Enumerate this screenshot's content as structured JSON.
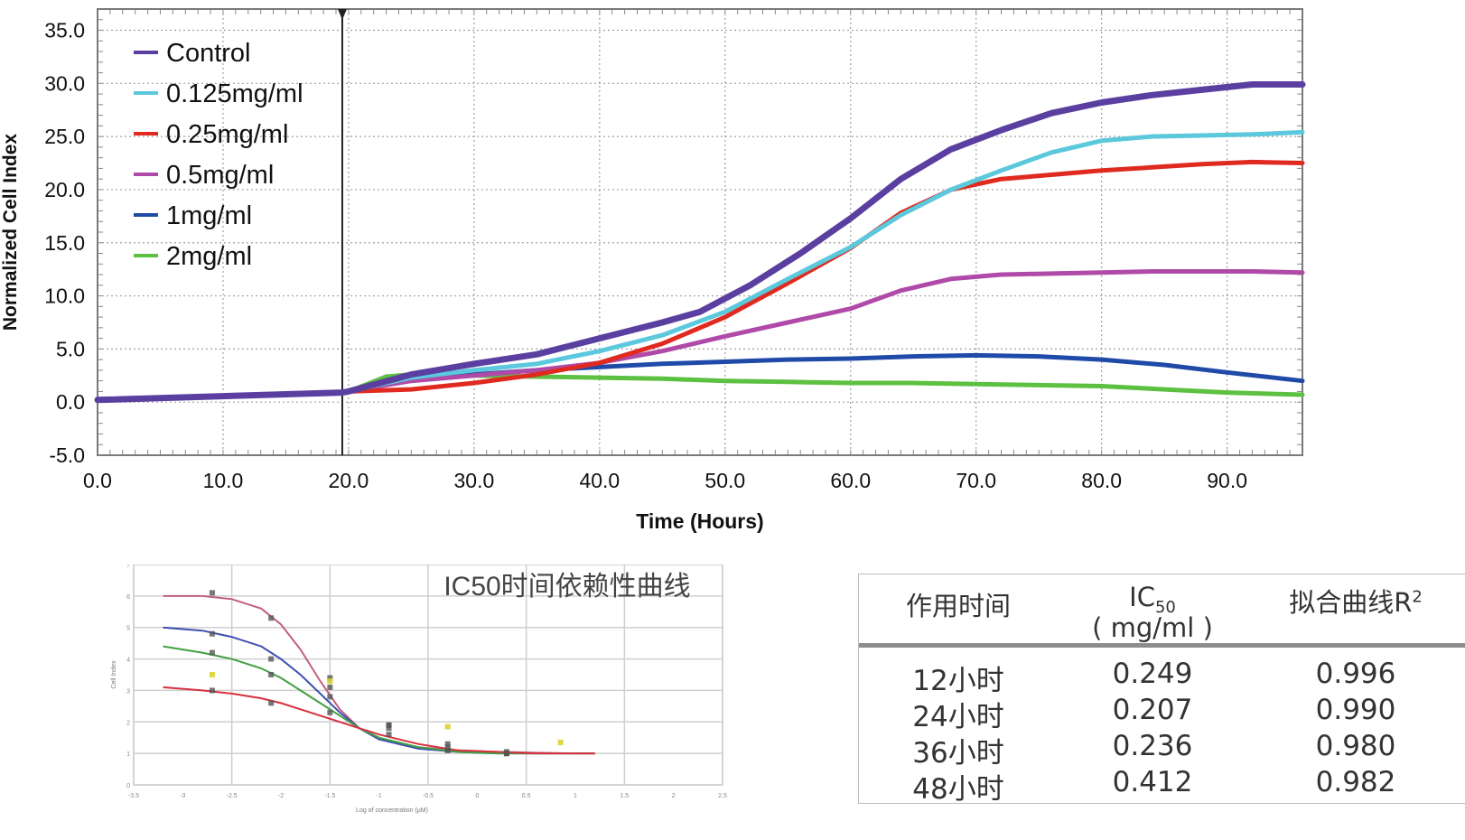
{
  "chart_data": [
    {
      "type": "line",
      "title": "",
      "xlabel": "Time (Hours)",
      "ylabel": "Normalized Cell Index",
      "xlim": [
        0,
        96
      ],
      "ylim": [
        -5,
        37
      ],
      "xticks": [
        0,
        10,
        20,
        30,
        40,
        50,
        60,
        70,
        80,
        90
      ],
      "xtick_labels": [
        "0.0",
        "10.0",
        "20.0",
        "30.0",
        "40.0",
        "50.0",
        "60.0",
        "70.0",
        "80.0",
        "90.0"
      ],
      "yticks": [
        -5,
        0,
        5,
        10,
        15,
        20,
        25,
        30,
        35
      ],
      "ytick_labels": [
        "-5.0",
        "0.0",
        "5.0",
        "10.0",
        "15.0",
        "20.0",
        "25.0",
        "30.0",
        "35.0"
      ],
      "grid": true,
      "legend_position": "top-left",
      "marker_line_x": 19.5,
      "series": [
        {
          "name": "Control",
          "color": "#5b3fa0",
          "x": [
            0,
            19.5,
            20,
            25,
            30,
            35,
            40,
            45,
            48,
            52,
            56,
            60,
            64,
            68,
            72,
            76,
            80,
            84,
            88,
            92,
            96
          ],
          "y": [
            0.2,
            0.9,
            1.0,
            2.6,
            3.6,
            4.5,
            6.0,
            7.5,
            8.5,
            11.0,
            14.0,
            17.3,
            21.0,
            23.8,
            25.6,
            27.2,
            28.2,
            28.9,
            29.4,
            29.9,
            29.9
          ]
        },
        {
          "name": "0.125mg/ml",
          "color": "#5bc8dc",
          "x": [
            20,
            25,
            30,
            35,
            40,
            45,
            50,
            55,
            60,
            64,
            68,
            72,
            76,
            80,
            84,
            88,
            92,
            96
          ],
          "y": [
            1.0,
            2.3,
            3.0,
            3.6,
            4.8,
            6.3,
            8.5,
            11.6,
            14.6,
            17.6,
            20.0,
            21.8,
            23.5,
            24.6,
            25.0,
            25.1,
            25.2,
            25.4
          ]
        },
        {
          "name": "0.25mg/ml",
          "color": "#e02a20",
          "x": [
            20,
            25,
            30,
            35,
            40,
            45,
            50,
            55,
            60,
            64,
            68,
            72,
            76,
            80,
            84,
            88,
            92,
            96
          ],
          "y": [
            1.0,
            1.2,
            1.8,
            2.6,
            3.7,
            5.5,
            8.0,
            11.2,
            14.5,
            17.8,
            20.0,
            21.0,
            21.4,
            21.8,
            22.1,
            22.4,
            22.6,
            22.5
          ]
        },
        {
          "name": "0.5mg/ml",
          "color": "#b04aa8",
          "x": [
            20,
            25,
            30,
            35,
            40,
            45,
            50,
            55,
            60,
            64,
            68,
            72,
            76,
            80,
            84,
            88,
            92,
            96
          ],
          "y": [
            1.0,
            2.0,
            2.5,
            3.0,
            3.7,
            4.8,
            6.2,
            7.5,
            8.8,
            10.5,
            11.6,
            12.0,
            12.1,
            12.2,
            12.3,
            12.3,
            12.3,
            12.2
          ]
        },
        {
          "name": "1mg/ml",
          "color": "#1f4aa8",
          "x": [
            20,
            25,
            30,
            35,
            40,
            45,
            50,
            55,
            60,
            65,
            70,
            75,
            80,
            85,
            90,
            96
          ],
          "y": [
            1.0,
            2.2,
            2.6,
            3.0,
            3.3,
            3.6,
            3.8,
            4.0,
            4.1,
            4.3,
            4.4,
            4.3,
            4.0,
            3.5,
            2.8,
            2.0
          ]
        },
        {
          "name": "2mg/ml",
          "color": "#5cc040",
          "x": [
            20,
            23,
            25,
            30,
            35,
            40,
            45,
            50,
            55,
            60,
            65,
            70,
            75,
            80,
            85,
            90,
            96
          ],
          "y": [
            1.0,
            2.4,
            2.6,
            2.5,
            2.4,
            2.3,
            2.2,
            2.0,
            1.9,
            1.8,
            1.8,
            1.7,
            1.6,
            1.5,
            1.2,
            0.9,
            0.7
          ]
        }
      ]
    },
    {
      "type": "line",
      "title": "IC50时间依赖性曲线",
      "xlabel": "Log of concentration (µM)",
      "ylabel": "Cell Index",
      "xlim": [
        -3.5,
        2.5
      ],
      "ylim": [
        0,
        7
      ],
      "xticks": [
        -3.5,
        -3,
        -2.5,
        -2,
        -1.5,
        -1,
        -0.5,
        0,
        0.5,
        1,
        1.5,
        2,
        2.5
      ],
      "xtick_labels": [
        "-3.5",
        "-3",
        "-2.5",
        "-2",
        "-1.5",
        "-1",
        "-0.5",
        "0",
        "0.5",
        "1",
        "1.5",
        "2",
        "2.5"
      ],
      "yticks": [
        0,
        1,
        2,
        3,
        4,
        5,
        6,
        7
      ],
      "ytick_labels": [
        "0",
        "1",
        "2",
        "3",
        "4",
        "5",
        "6",
        "7"
      ],
      "grid": true,
      "series": [
        {
          "color": "#c06080",
          "fit_x": [
            -3.2,
            -2.8,
            -2.5,
            -2.2,
            -2.0,
            -1.8,
            -1.6,
            -1.4,
            -1.2,
            -1.0,
            -0.6,
            -0.2,
            0.2,
            0.6,
            1.0,
            1.2
          ],
          "fit_y": [
            6.0,
            6.0,
            5.9,
            5.6,
            5.1,
            4.3,
            3.3,
            2.4,
            1.8,
            1.45,
            1.2,
            1.1,
            1.05,
            1.02,
            1.0,
            1.0
          ],
          "point_x": [
            -2.7,
            -2.1,
            -1.5,
            -0.9,
            -0.3,
            0.3
          ],
          "point_y": [
            6.1,
            5.3,
            3.4,
            1.6,
            1.1,
            1.0
          ]
        },
        {
          "color": "#3c50b0",
          "fit_x": [
            -3.2,
            -2.8,
            -2.5,
            -2.2,
            -2.0,
            -1.8,
            -1.6,
            -1.4,
            -1.2,
            -1.0,
            -0.6,
            -0.2,
            0.2,
            0.6,
            1.0,
            1.2
          ],
          "fit_y": [
            5.0,
            4.9,
            4.7,
            4.4,
            4.0,
            3.5,
            2.9,
            2.3,
            1.8,
            1.45,
            1.15,
            1.05,
            1.0,
            1.0,
            1.0,
            1.0
          ],
          "point_x": [
            -2.7,
            -2.1,
            -1.5,
            -0.9,
            -0.3,
            0.3
          ],
          "point_y": [
            4.8,
            4.0,
            3.1,
            1.9,
            1.1,
            1.0
          ]
        },
        {
          "color": "#40a040",
          "fit_x": [
            -3.2,
            -2.8,
            -2.5,
            -2.2,
            -2.0,
            -1.8,
            -1.6,
            -1.4,
            -1.2,
            -1.0,
            -0.6,
            -0.2,
            0.2,
            0.6,
            1.0,
            1.2
          ],
          "fit_y": [
            4.4,
            4.2,
            4.0,
            3.7,
            3.4,
            3.0,
            2.6,
            2.2,
            1.8,
            1.5,
            1.2,
            1.05,
            1.0,
            1.0,
            1.0,
            1.0
          ],
          "point_x": [
            -2.7,
            -2.1,
            -1.5,
            -0.9,
            -0.3,
            0.3
          ],
          "point_y": [
            4.2,
            3.5,
            2.8,
            1.9,
            1.2,
            1.0
          ]
        },
        {
          "color": "#d83040",
          "fit_x": [
            -3.2,
            -2.8,
            -2.5,
            -2.2,
            -2.0,
            -1.8,
            -1.6,
            -1.4,
            -1.2,
            -1.0,
            -0.6,
            -0.2,
            0.2,
            0.6,
            1.0,
            1.2
          ],
          "fit_y": [
            3.1,
            3.0,
            2.9,
            2.75,
            2.6,
            2.4,
            2.2,
            2.0,
            1.8,
            1.6,
            1.3,
            1.1,
            1.05,
            1.0,
            1.0,
            1.0
          ],
          "point_x": [
            -2.7,
            -2.1,
            -1.5,
            -0.9,
            -0.3,
            0.3
          ],
          "point_y": [
            3.0,
            2.6,
            2.3,
            1.8,
            1.3,
            1.05
          ]
        },
        {
          "color": "#d8d020",
          "point_x": [
            -2.7,
            -1.5,
            -0.3,
            0.85
          ],
          "point_y": [
            3.5,
            3.3,
            1.85,
            1.35
          ]
        }
      ]
    },
    {
      "type": "table",
      "columns": [
        "作用时间",
        "IC50 (mg/ml)",
        "拟合曲线R²"
      ],
      "rows": [
        [
          "12小时",
          "0.249",
          "0.996"
        ],
        [
          "24小时",
          "0.207",
          "0.990"
        ],
        [
          "36小时",
          "0.236",
          "0.980"
        ],
        [
          "48小时",
          "0.412",
          "0.982"
        ]
      ]
    }
  ],
  "table": {
    "header": {
      "col1": "作用时间",
      "col2_main": "IC",
      "col2_sub": "50",
      "col2_unit": "( mg/ml )",
      "col3_main": "拟合曲线R",
      "col3_sup": "2"
    },
    "rows": [
      {
        "time": "12小时",
        "ic50": "0.249",
        "r2": "0.996"
      },
      {
        "time": "24小时",
        "ic50": "0.207",
        "r2": "0.990"
      },
      {
        "time": "36小时",
        "ic50": "0.236",
        "r2": "0.980"
      },
      {
        "time": "48小时",
        "ic50": "0.412",
        "r2": "0.982"
      }
    ]
  }
}
